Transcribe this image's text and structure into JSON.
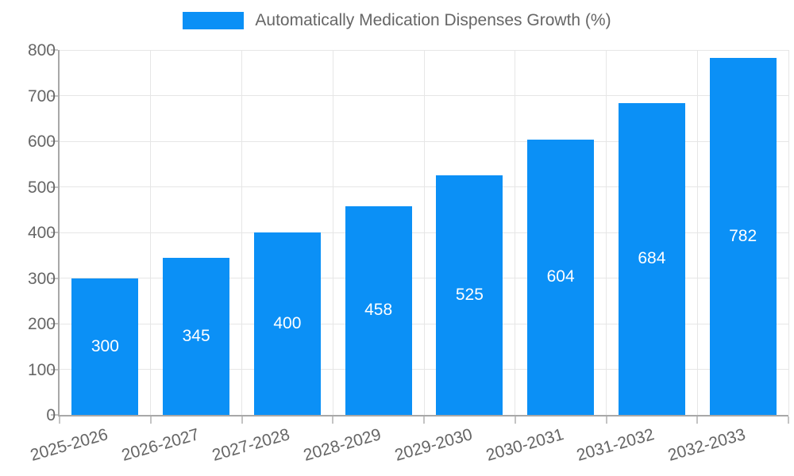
{
  "legend": {
    "label": "Automatically Medication Dispenses Growth (%)"
  },
  "chart_data": {
    "type": "bar",
    "title": "Automatically Medication Dispenses Growth (%)",
    "categories": [
      "2025-2026",
      "2026-2027",
      "2027-2028",
      "2028-2029",
      "2029-2030",
      "2030-2031",
      "2031-2032",
      "2032-2033"
    ],
    "values": [
      300,
      345,
      400,
      458,
      525,
      604,
      684,
      782
    ],
    "value_labels": [
      "300",
      "345",
      "400",
      "458",
      "525",
      "604",
      "684",
      "782"
    ],
    "xlabel": "",
    "ylabel": "",
    "ylim": [
      0,
      800
    ],
    "ytick_step": 100,
    "ytick_labels": [
      "0",
      "100",
      "200",
      "300",
      "400",
      "500",
      "600",
      "700",
      "800"
    ],
    "grid": true,
    "legend_position": "top",
    "colors": {
      "bar": "#0b90f6",
      "value_label": "#ffffff",
      "grid": "#e6e6e6",
      "axis": "#a8a8a8",
      "tick": "#c4c4c4",
      "tick_text": "#666666",
      "legend_text": "#666666",
      "background": "#ffffff"
    }
  }
}
